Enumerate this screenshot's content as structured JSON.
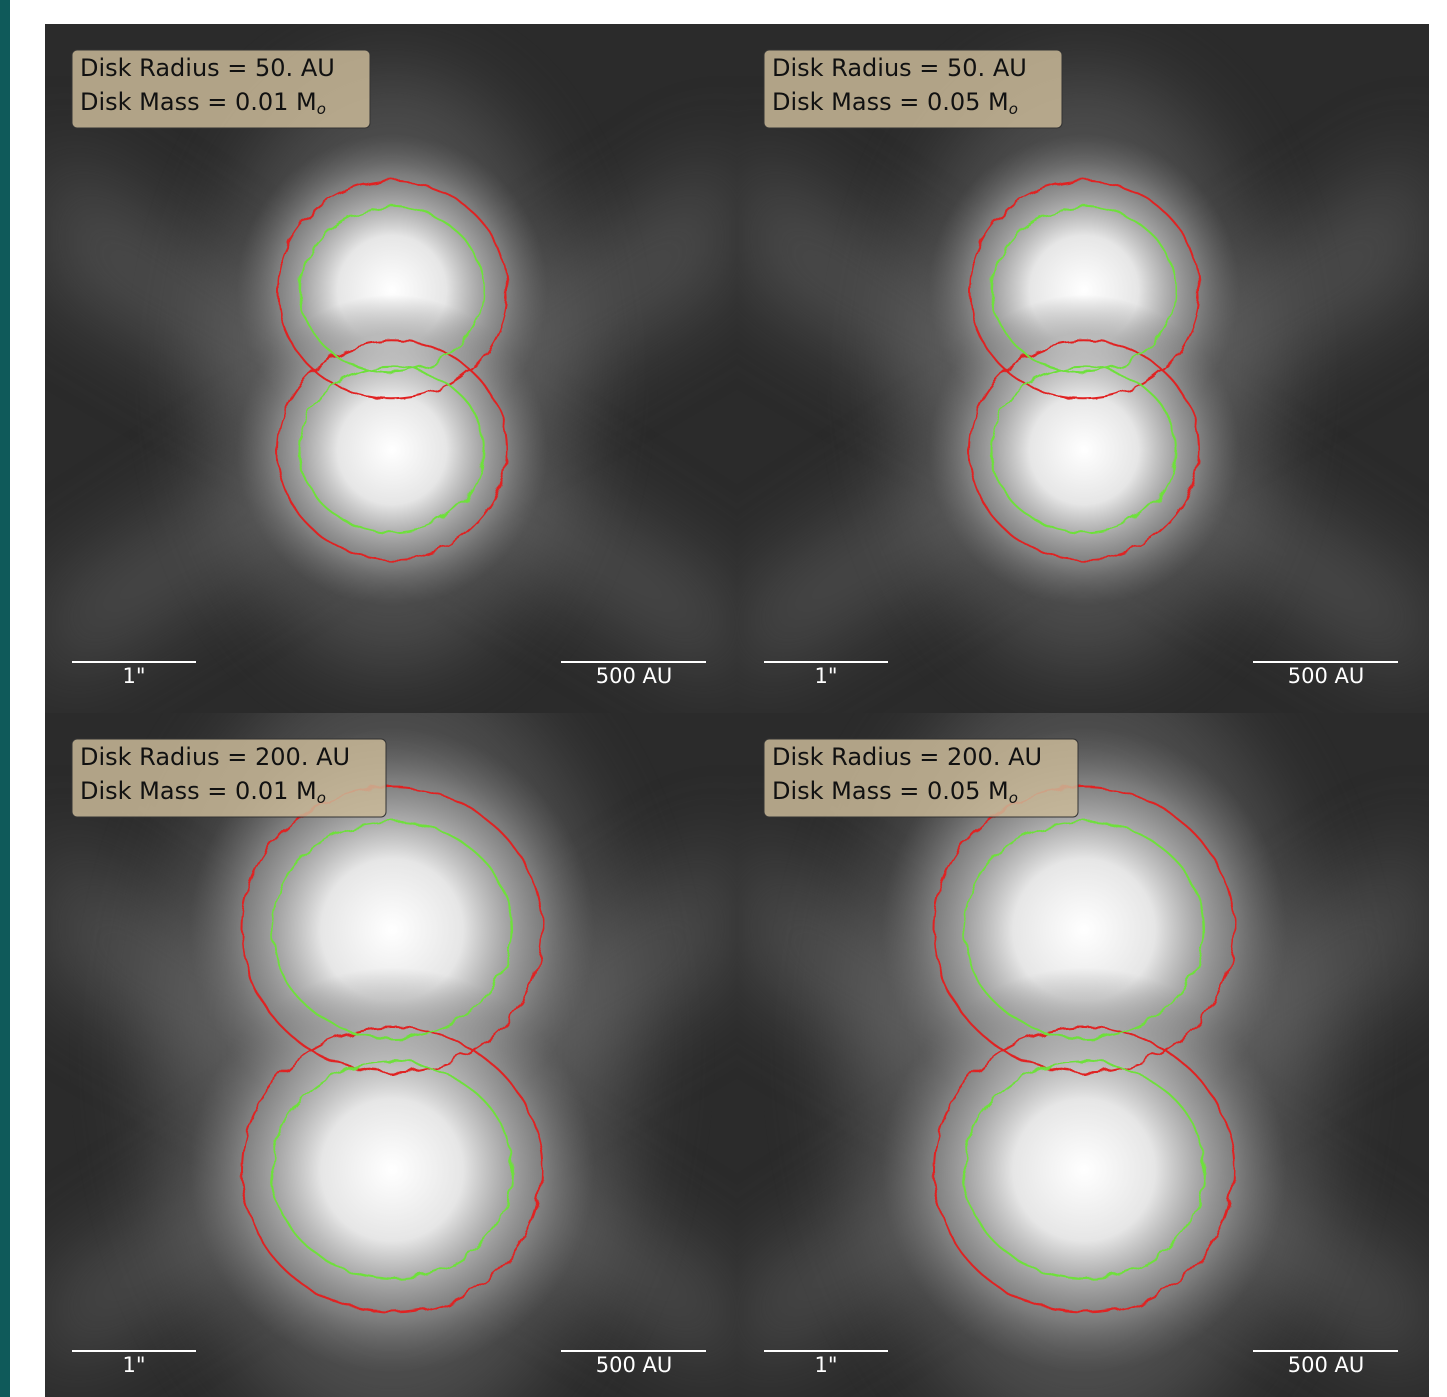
{
  "panels": [
    {
      "radius_label": "Disk Radius = 50. AU",
      "mass_label": "Disk Mass = 0.01 M",
      "mass_sub": "o"
    },
    {
      "radius_label": "Disk Radius = 50. AU",
      "mass_label": "Disk Mass = 0.05 M",
      "mass_sub": "o"
    },
    {
      "radius_label": "Disk Radius = 200. AU",
      "mass_label": "Disk Mass = 0.01 M",
      "mass_sub": "o"
    },
    {
      "radius_label": "Disk Radius = 200. AU",
      "mass_label": "Disk Mass = 0.05 M",
      "mass_sub": "o"
    }
  ],
  "scale_bars": {
    "angular": "1\"",
    "physical": "500 AU"
  }
}
